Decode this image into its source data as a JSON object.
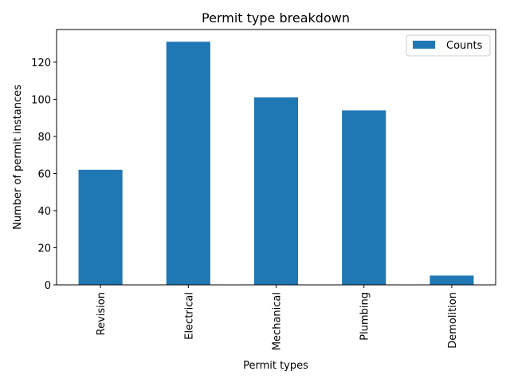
{
  "chart_data": {
    "type": "bar",
    "title": "Permit type breakdown",
    "xlabel": "Permit types",
    "ylabel": "Number of permit instances",
    "categories": [
      "Revision",
      "Electrical",
      "Mechanical",
      "Plumbing",
      "Demolition"
    ],
    "series": [
      {
        "name": "Counts",
        "values": [
          62,
          131,
          101,
          94,
          5
        ],
        "color": "#1f77b4"
      }
    ],
    "yticks": [
      0,
      20,
      40,
      60,
      80,
      100,
      120
    ],
    "ylim": [
      0,
      137.6
    ],
    "grid": false,
    "legend": "top-right"
  }
}
